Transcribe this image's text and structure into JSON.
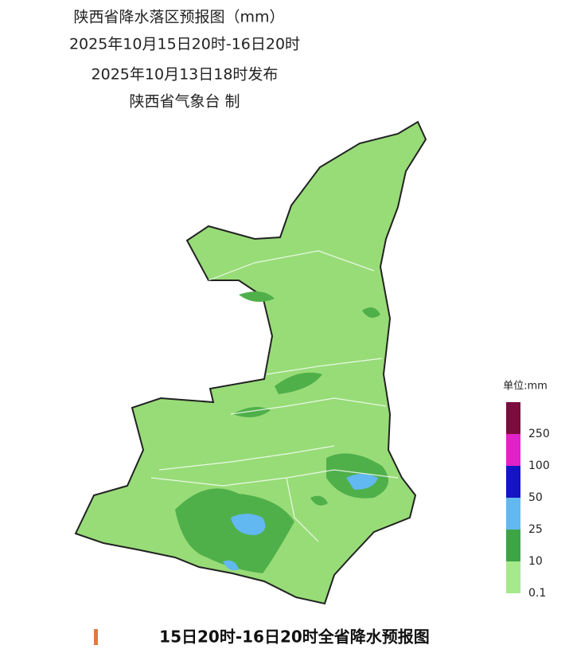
{
  "header": {
    "title": "陕西省降水落区预报图（mm）",
    "period": "2025年10月15日20时-16日20时",
    "issued": "2025年10月13日18时发布",
    "issuer": "陕西省气象台 制"
  },
  "legend": {
    "title": "单位:mm",
    "items": [
      {
        "label": "250",
        "color": "#7a0d3e"
      },
      {
        "label": "100",
        "color": "#e022c8"
      },
      {
        "label": "50",
        "color": "#1414c4"
      },
      {
        "label": "25",
        "color": "#62b8f0"
      },
      {
        "label": "10",
        "color": "#3ca544"
      },
      {
        "label": "0.1",
        "color": "#a6e88c"
      }
    ]
  },
  "caption": "15日20时-16日20时全省降水预报图"
}
